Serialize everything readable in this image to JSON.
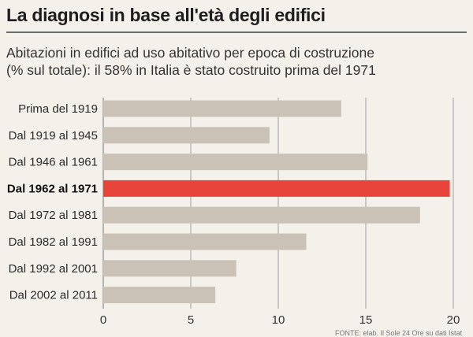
{
  "title": "La diagnosi in base all'età degli edifici",
  "subtitle_lines": [
    "Abitazioni in edifici ad uso abitativo per epoca di costruzione",
    "(% sul totale): il 58% in Italia è stato costruito prima del 1971"
  ],
  "source_label": "FONTE: elab. Il Sole 24 Ore su dati Istat",
  "colors": {
    "bar": "#cbc2b7",
    "highlight": "#e8443a",
    "grid": "#8a8a8a"
  },
  "chart_data": {
    "type": "bar",
    "orientation": "horizontal",
    "categories": [
      "Prima del 1919",
      "Dal 1919 al 1945",
      "Dal 1946 al 1961",
      "Dal 1962 al 1971",
      "Dal 1972 al 1981",
      "Dal 1982 al 1991",
      "Dal 1992 al 2001",
      "Dal 2002 al 2011"
    ],
    "values": [
      13.6,
      9.5,
      15.1,
      19.8,
      18.1,
      11.6,
      7.6,
      6.4
    ],
    "highlight_index": 3,
    "xlim": [
      0,
      20
    ],
    "xticks": [
      0,
      5,
      10,
      15,
      20
    ],
    "grid": "vertical"
  }
}
